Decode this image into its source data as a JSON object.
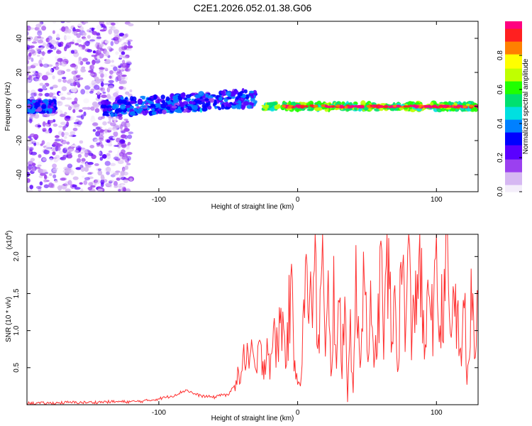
{
  "title": "C2E1.2026.052.01.38.G06",
  "colorbar": {
    "label": "Normalized spectral amplitude",
    "ticks": [
      "0.0",
      "0.2",
      "0.4",
      "0.6",
      "0.8"
    ],
    "range": [
      0,
      1
    ],
    "colors": [
      "#f4eefb",
      "#d6b8f2",
      "#9b40f0",
      "#5a00ff",
      "#0000ff",
      "#0080ff",
      "#00e0e0",
      "#00e070",
      "#20ff00",
      "#c0ff00",
      "#ffff00",
      "#ff8000",
      "#ff2020",
      "#ff0080"
    ]
  },
  "chart_data": [
    {
      "type": "heatmap",
      "title": "C2E1.2026.052.01.38.G06",
      "xlabel": "Height of straight line (km)",
      "ylabel": "Frequency (Hz)",
      "xlim": [
        -195,
        130
      ],
      "ylim": [
        -50,
        50
      ],
      "xticks": [
        "-100",
        "0",
        "100"
      ],
      "yticks": [
        "-40",
        "-20",
        "0",
        "20",
        "40"
      ],
      "regions": [
        {
          "x": [
            -195,
            -120
          ],
          "y": [
            -50,
            50
          ],
          "amplitude": 0.1,
          "note_color": "light violet scatter"
        },
        {
          "x": [
            -195,
            -175
          ],
          "y": [
            -3,
            3
          ],
          "amplitude": 0.3
        },
        {
          "x": [
            -140,
            -30
          ],
          "y": [
            -4,
            10
          ],
          "amplitude": 0.3
        },
        {
          "x": [
            -25,
            130
          ],
          "y": [
            -2,
            2
          ],
          "amplitude": 0.6
        },
        {
          "x": [
            -10,
            130
          ],
          "y": [
            -0.5,
            0.5
          ],
          "amplitude": 0.95
        }
      ]
    },
    {
      "type": "line",
      "xlabel": "Height of straight line (km)",
      "ylabel": "SNR (10 * v/v)",
      "y_multiplier": "(x10^4)",
      "xlim": [
        -195,
        130
      ],
      "ylim": [
        0,
        2.3
      ],
      "xticks": [
        "-100",
        "0",
        "100"
      ],
      "yticks": [
        "0.5",
        "1.0",
        "1.5",
        "2.0"
      ],
      "series": [
        {
          "color": "#ff3030",
          "x": [
            -195,
            -180,
            -165,
            -150,
            -135,
            -120,
            -110,
            -100,
            -90,
            -85,
            -80,
            -75,
            -70,
            -60,
            -55,
            -50,
            -45,
            -40,
            -37,
            -35,
            -32,
            -30,
            -28,
            -25,
            -22,
            -20,
            -18,
            -15,
            -12,
            -10,
            -8,
            -5,
            -2,
            0,
            2,
            5,
            8,
            10,
            12,
            15,
            18,
            20,
            22,
            24,
            26,
            28,
            30,
            32,
            34,
            36,
            38,
            40,
            42,
            45,
            48,
            50,
            52,
            55,
            58,
            60,
            62,
            65,
            68,
            70,
            72,
            75,
            78,
            80,
            82,
            85,
            88,
            90,
            92,
            95,
            98,
            100,
            102,
            105,
            108,
            110,
            112,
            115,
            118,
            120,
            122,
            125,
            128,
            130
          ],
          "values": [
            0.02,
            0.02,
            0.03,
            0.03,
            0.04,
            0.04,
            0.05,
            0.08,
            0.12,
            0.16,
            0.2,
            0.15,
            0.12,
            0.1,
            0.14,
            0.12,
            0.3,
            0.45,
            0.8,
            0.55,
            0.65,
            0.4,
            0.7,
            0.55,
            0.8,
            0.6,
            0.9,
            0.75,
            1.2,
            0.9,
            0.7,
            1.55,
            0.6,
            0.45,
            0.3,
            1.4,
            1.7,
            1.2,
            1.9,
            0.8,
            2.1,
            0.5,
            1.5,
            0.3,
            1.6,
            0.7,
            1.3,
            0.4,
            1.9,
            0.05,
            1.1,
            0.2,
            1.5,
            0.6,
            2.15,
            0.8,
            1.4,
            0.4,
            1.2,
            1.85,
            0.9,
            2.05,
            0.7,
            1.5,
            0.5,
            1.9,
            1.1,
            2.1,
            0.8,
            1.6,
            2.0,
            1.2,
            0.6,
            1.8,
            1.0,
            2.15,
            0.9,
            1.5,
            2.3,
            0.7,
            1.6,
            1.1,
            0.5,
            1.85,
            0.2,
            1.3,
            0.8,
            1.5
          ]
        }
      ]
    }
  ]
}
